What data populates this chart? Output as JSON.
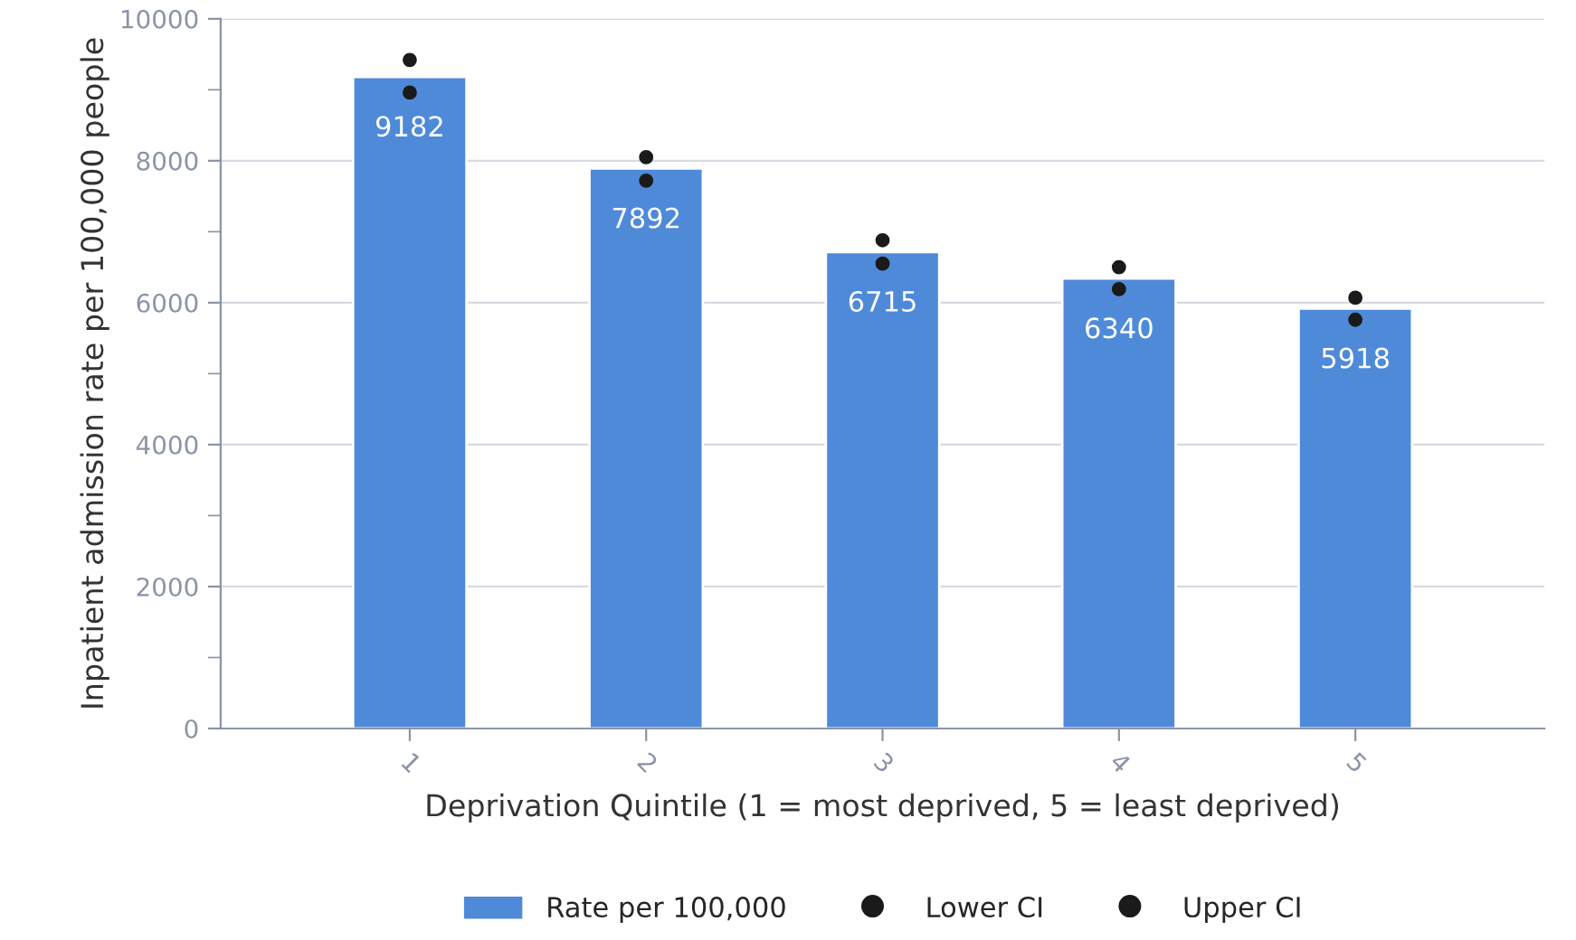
{
  "chart_data": {
    "type": "bar",
    "xlabel": "Deprivation Quintile (1 = most deprived, 5 = least deprived)",
    "ylabel": "Inpatient admission rate per 100,000 people",
    "categories": [
      "1",
      "2",
      "3",
      "4",
      "5"
    ],
    "series": [
      {
        "name": "Rate per 100,000",
        "color": "#4f8ad9",
        "values": [
          9182,
          7892,
          6715,
          6340,
          5918
        ],
        "value_labels": [
          "9182",
          "7892",
          "6715",
          "6340",
          "5918"
        ]
      },
      {
        "name": "Lower CI",
        "type": "scatter",
        "color": "#1a1a1a",
        "x": [
          "1",
          "2",
          "3",
          "4",
          "5"
        ],
        "values": [
          8960,
          7720,
          6550,
          6190,
          5760
        ]
      },
      {
        "name": "Upper CI",
        "type": "scatter",
        "color": "#1a1a1a",
        "x": [
          "1",
          "2",
          "3",
          "4",
          "5"
        ],
        "values": [
          9420,
          8050,
          6880,
          6500,
          6070
        ]
      }
    ],
    "ylim": [
      0,
      10000
    ],
    "yticks": [
      0,
      {
        "value": 1000,
        "label": null
      },
      2000,
      {
        "value": 3000,
        "label": null
      },
      4000,
      {
        "value": 5000,
        "label": null
      },
      6000,
      {
        "value": 7000,
        "label": null
      },
      8000,
      {
        "value": 9000,
        "label": null
      },
      10000
    ],
    "grid": "y",
    "legend": "bottom",
    "marker": "circle"
  }
}
